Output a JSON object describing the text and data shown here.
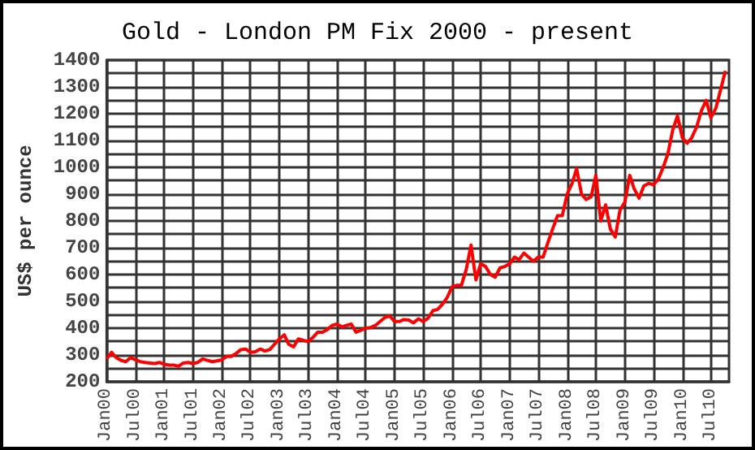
{
  "chart_data": {
    "type": "line",
    "title": "Gold - London PM Fix 2000 - present",
    "ylabel": "US$ per ounce",
    "xlim": [
      "2000-01",
      "2010-10-24"
    ],
    "xticks": [
      {
        "value": "2000-01",
        "label": "Jan00"
      },
      {
        "value": "2000-07",
        "label": "Jul00"
      },
      {
        "value": "2001-01",
        "label": "Jan01"
      },
      {
        "value": "2001-07",
        "label": "Jul01"
      },
      {
        "value": "2002-01",
        "label": "Jan02"
      },
      {
        "value": "2002-07",
        "label": "Jul02"
      },
      {
        "value": "2003-01",
        "label": "Jan03"
      },
      {
        "value": "2003-07",
        "label": "Jul03"
      },
      {
        "value": "2004-01",
        "label": "Jan04"
      },
      {
        "value": "2004-07",
        "label": "Jul04"
      },
      {
        "value": "2005-01",
        "label": "Jan05"
      },
      {
        "value": "2005-07",
        "label": "Jul05"
      },
      {
        "value": "2006-01",
        "label": "Jan06"
      },
      {
        "value": "2006-07",
        "label": "Jul06"
      },
      {
        "value": "2007-01",
        "label": "Jan07"
      },
      {
        "value": "2007-07",
        "label": "Jul07"
      },
      {
        "value": "2008-01",
        "label": "Jan08"
      },
      {
        "value": "2008-07",
        "label": "Jul08"
      },
      {
        "value": "2009-01",
        "label": "Jan09"
      },
      {
        "value": "2009-07",
        "label": "Jul09"
      },
      {
        "value": "2010-01",
        "label": "Jan10"
      },
      {
        "value": "2010-07",
        "label": "Jul10"
      }
    ],
    "ylim": [
      200,
      1400
    ],
    "yticks": [
      200,
      {
        "value": 250,
        "label": null
      },
      300,
      {
        "value": 350,
        "label": null
      },
      400,
      {
        "value": 450,
        "label": null
      },
      500,
      {
        "value": 550,
        "label": null
      },
      600,
      {
        "value": 650,
        "label": null
      },
      700,
      {
        "value": 750,
        "label": null
      },
      800,
      {
        "value": 850,
        "label": null
      },
      900,
      {
        "value": 950,
        "label": null
      },
      1000,
      {
        "value": 1050,
        "label": null
      },
      1100,
      {
        "value": 1150,
        "label": null
      },
      1200,
      {
        "value": 1250,
        "label": null
      },
      1300,
      {
        "value": 1350,
        "label": null
      },
      1400
    ],
    "grid": true,
    "marker": "none",
    "line_style": "solid",
    "series": [
      {
        "color": "#ff0000",
        "x": [
          "2000-01",
          "2000-02",
          "2000-03",
          "2000-04",
          "2000-05",
          "2000-06",
          "2000-07",
          "2000-08",
          "2000-09",
          "2000-10",
          "2000-11",
          "2000-12",
          "2001-01",
          "2001-02",
          "2001-03",
          "2001-04",
          "2001-05",
          "2001-06",
          "2001-07",
          "2001-08",
          "2001-09",
          "2001-10",
          "2001-11",
          "2001-12",
          "2002-01",
          "2002-02",
          "2002-03",
          "2002-04",
          "2002-05",
          "2002-06",
          "2002-07",
          "2002-08",
          "2002-09",
          "2002-10",
          "2002-11",
          "2002-12",
          "2003-01",
          "2003-02",
          "2003-03",
          "2003-04",
          "2003-05",
          "2003-06",
          "2003-07",
          "2003-08",
          "2003-09",
          "2003-10",
          "2003-11",
          "2003-12",
          "2004-01",
          "2004-02",
          "2004-03",
          "2004-04",
          "2004-05",
          "2004-06",
          "2004-07",
          "2004-08",
          "2004-09",
          "2004-10",
          "2004-11",
          "2004-12",
          "2005-01",
          "2005-02",
          "2005-03",
          "2005-04",
          "2005-05",
          "2005-06",
          "2005-07",
          "2005-08",
          "2005-09",
          "2005-10",
          "2005-11",
          "2005-12",
          "2006-01",
          "2006-02",
          "2006-03",
          "2006-04",
          "2006-05",
          "2006-06",
          "2006-07",
          "2006-08",
          "2006-09",
          "2006-10",
          "2006-11",
          "2006-12",
          "2007-01",
          "2007-02",
          "2007-03",
          "2007-04",
          "2007-05",
          "2007-06",
          "2007-07",
          "2007-08",
          "2007-09",
          "2007-10",
          "2007-11",
          "2007-12",
          "2008-01",
          "2008-02",
          "2008-03",
          "2008-04",
          "2008-05",
          "2008-06",
          "2008-07",
          "2008-08",
          "2008-09",
          "2008-10",
          "2008-11",
          "2008-12",
          "2009-01",
          "2009-02",
          "2009-03",
          "2009-04",
          "2009-05",
          "2009-06",
          "2009-07",
          "2009-08",
          "2009-09",
          "2009-10",
          "2009-11",
          "2009-12",
          "2010-01",
          "2010-02",
          "2010-03",
          "2010-04",
          "2010-05",
          "2010-06",
          "2010-07",
          "2010-08",
          "2010-09",
          "2010-10"
        ],
        "values": [
          285,
          310,
          290,
          280,
          275,
          290,
          282,
          275,
          272,
          270,
          268,
          272,
          265,
          262,
          262,
          258,
          270,
          272,
          268,
          272,
          285,
          280,
          275,
          278,
          282,
          295,
          295,
          305,
          320,
          322,
          310,
          312,
          322,
          315,
          320,
          340,
          360,
          375,
          340,
          330,
          360,
          355,
          350,
          365,
          385,
          385,
          395,
          410,
          415,
          405,
          410,
          415,
          385,
          392,
          400,
          402,
          410,
          425,
          440,
          445,
          425,
          425,
          432,
          430,
          420,
          435,
          425,
          437,
          465,
          470,
          490,
          515,
          555,
          560,
          560,
          620,
          710,
          580,
          640,
          630,
          600,
          590,
          625,
          630,
          640,
          665,
          655,
          680,
          665,
          650,
          665,
          665,
          720,
          770,
          820,
          820,
          900,
          940,
          995,
          900,
          880,
          890,
          970,
          800,
          860,
          770,
          740,
          840,
          870,
          970,
          920,
          885,
          930,
          940,
          935,
          955,
          1000,
          1050,
          1140,
          1192,
          1110,
          1090,
          1110,
          1150,
          1210,
          1250,
          1185,
          1220,
          1290,
          1360
        ]
      }
    ]
  }
}
